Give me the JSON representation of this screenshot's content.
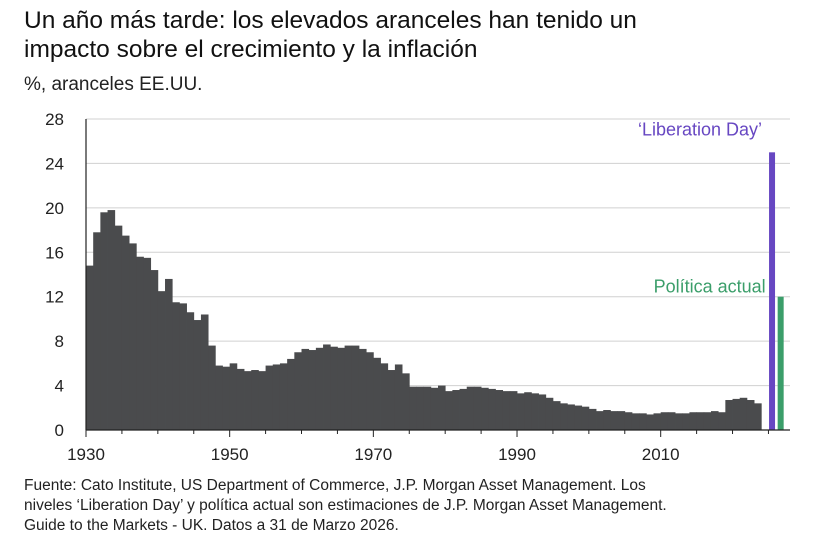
{
  "title_line1": "Un año más tarde: los elevados aranceles han tenido un",
  "title_line2": "impacto sobre el crecimiento y la inflación",
  "subtitle": "%, aranceles EE.UU.",
  "footer": {
    "line1": "Fuente: Cato Institute, US Department of Commerce, J.P. Morgan Asset Management. Los",
    "line2": "niveles ‘Liberation Day’ y política actual son estimaciones de J.P. Morgan Asset Management.",
    "line3": "Guide to the Markets - UK. Datos a 31 de Marzo 2026."
  },
  "colors": {
    "history": "#4a4b4d",
    "liberation": "#6747c2",
    "current_policy": "#3b9e6a",
    "grid": "#d0d0d0",
    "axis": "#222222"
  },
  "chart_data": {
    "type": "bar",
    "xlim": [
      1930,
      2028
    ],
    "ylim": [
      0,
      28
    ],
    "yticks": [
      0,
      4,
      8,
      12,
      16,
      20,
      24,
      28
    ],
    "xticks": [
      1930,
      1950,
      1970,
      1990,
      2010
    ],
    "grid": "horizontal",
    "series": [
      {
        "name": "",
        "years": [
          1930,
          1931,
          1932,
          1933,
          1934,
          1935,
          1936,
          1937,
          1938,
          1939,
          1940,
          1941,
          1942,
          1943,
          1944,
          1945,
          1946,
          1947,
          1948,
          1949,
          1950,
          1951,
          1952,
          1953,
          1954,
          1955,
          1956,
          1957,
          1958,
          1959,
          1960,
          1961,
          1962,
          1963,
          1964,
          1965,
          1966,
          1967,
          1968,
          1969,
          1970,
          1971,
          1972,
          1973,
          1974,
          1975,
          1976,
          1977,
          1978,
          1979,
          1980,
          1981,
          1982,
          1983,
          1984,
          1985,
          1986,
          1987,
          1988,
          1989,
          1990,
          1991,
          1992,
          1993,
          1994,
          1995,
          1996,
          1997,
          1998,
          1999,
          2000,
          2001,
          2002,
          2003,
          2004,
          2005,
          2006,
          2007,
          2008,
          2009,
          2010,
          2011,
          2012,
          2013,
          2014,
          2015,
          2016,
          2017,
          2018,
          2019,
          2020,
          2021,
          2022,
          2023
        ],
        "values": [
          14.8,
          17.8,
          19.6,
          19.8,
          18.4,
          17.5,
          16.8,
          15.6,
          15.5,
          14.4,
          12.5,
          13.6,
          11.5,
          11.4,
          10.6,
          9.9,
          10.4,
          7.6,
          5.8,
          5.7,
          6.0,
          5.5,
          5.3,
          5.4,
          5.3,
          5.8,
          5.9,
          6.0,
          6.4,
          7.0,
          7.3,
          7.2,
          7.4,
          7.7,
          7.5,
          7.4,
          7.6,
          7.6,
          7.3,
          7.0,
          6.5,
          6.0,
          5.4,
          5.9,
          5.1,
          3.9,
          3.9,
          3.9,
          3.8,
          4.0,
          3.5,
          3.6,
          3.7,
          3.9,
          3.9,
          3.8,
          3.7,
          3.6,
          3.5,
          3.5,
          3.3,
          3.4,
          3.3,
          3.2,
          2.9,
          2.6,
          2.4,
          2.3,
          2.2,
          2.1,
          1.9,
          1.7,
          1.8,
          1.7,
          1.7,
          1.6,
          1.5,
          1.5,
          1.4,
          1.5,
          1.6,
          1.6,
          1.5,
          1.5,
          1.6,
          1.6,
          1.6,
          1.7,
          1.6,
          2.7,
          2.8,
          2.9,
          2.7,
          2.4
        ]
      },
      {
        "name": "‘Liberation Day’",
        "year": 2025.5,
        "value": 25.0
      },
      {
        "name": "Política actual",
        "year": 2026.7,
        "value": 12.0
      }
    ]
  }
}
